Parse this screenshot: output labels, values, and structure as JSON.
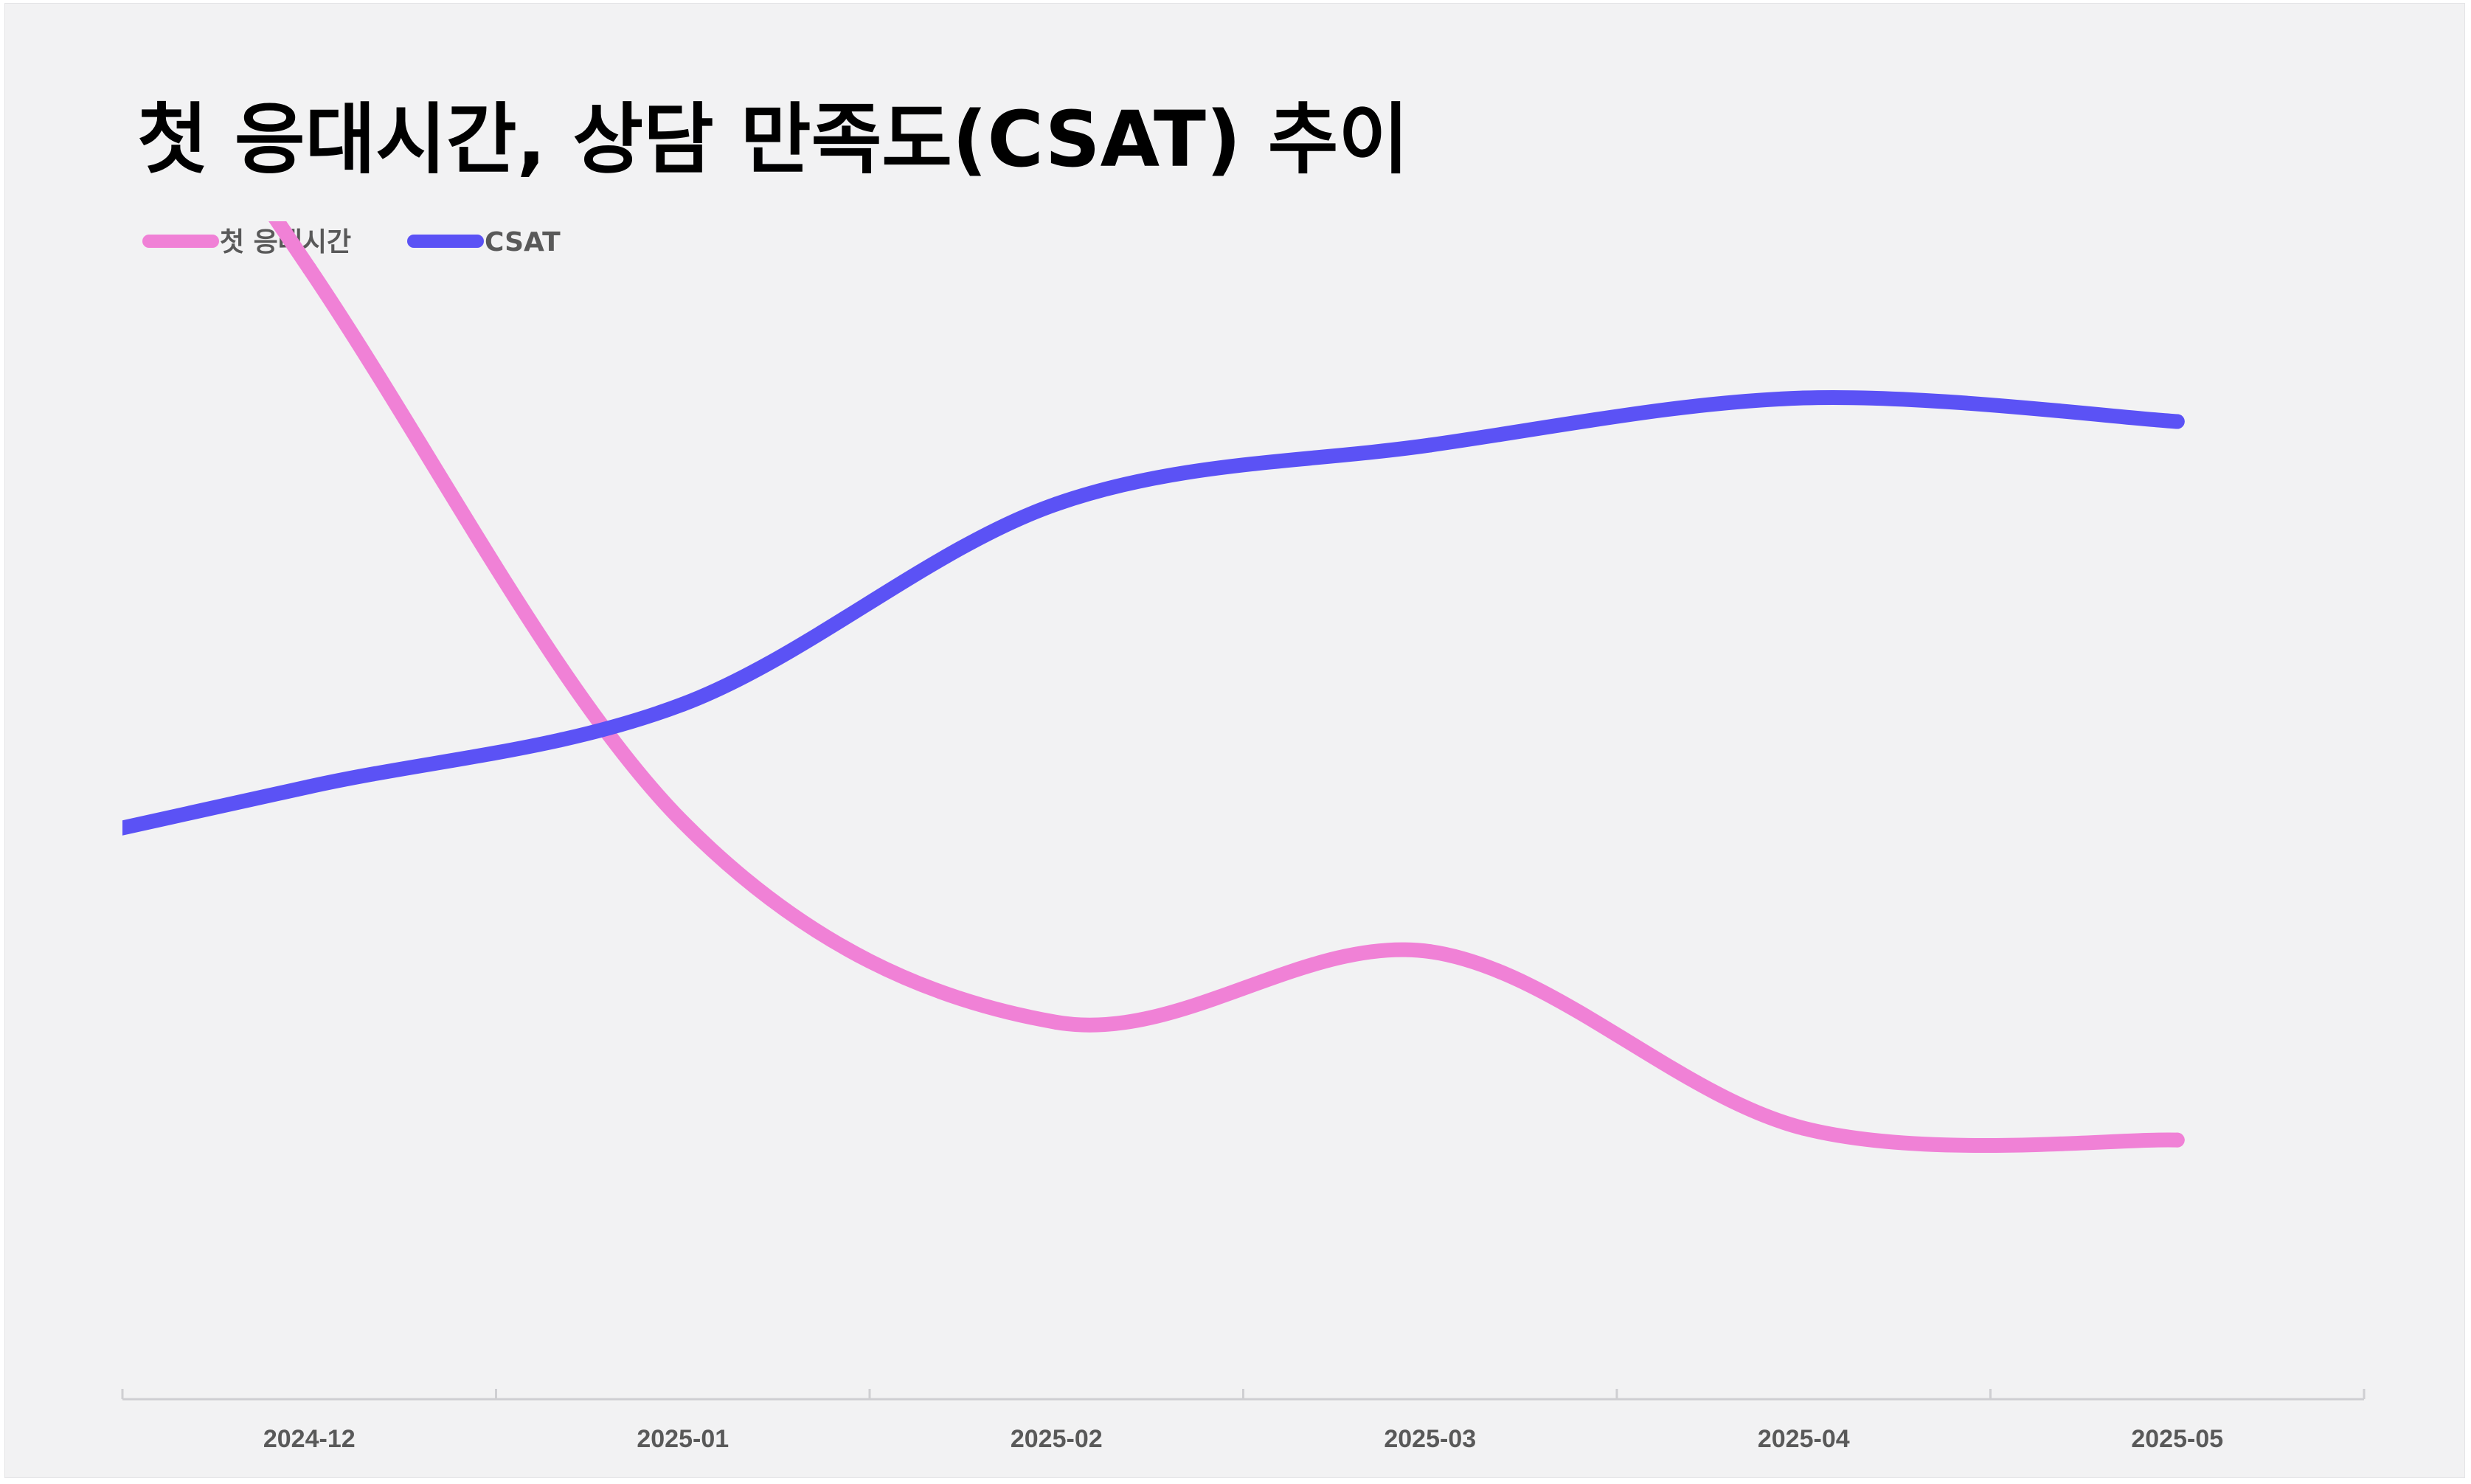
{
  "chart_data": {
    "type": "line",
    "title": "첫 응대시간, 상담 만족도(CSAT) 추이",
    "categories": [
      "2024-12",
      "2025-01",
      "2025-02",
      "2025-03",
      "2025-04",
      "2025-05"
    ],
    "series": [
      {
        "name": "첫 응대시간",
        "color": "#f081d6",
        "values": [
          96,
          49,
          32,
          38,
          23,
          22
        ]
      },
      {
        "name": "CSAT",
        "color": "#5b52f5",
        "values": [
          52,
          59,
          76,
          81,
          85,
          83
        ]
      }
    ],
    "smooth": true,
    "y_axis_visible": false,
    "grid": false,
    "legend_position": "top-left"
  }
}
